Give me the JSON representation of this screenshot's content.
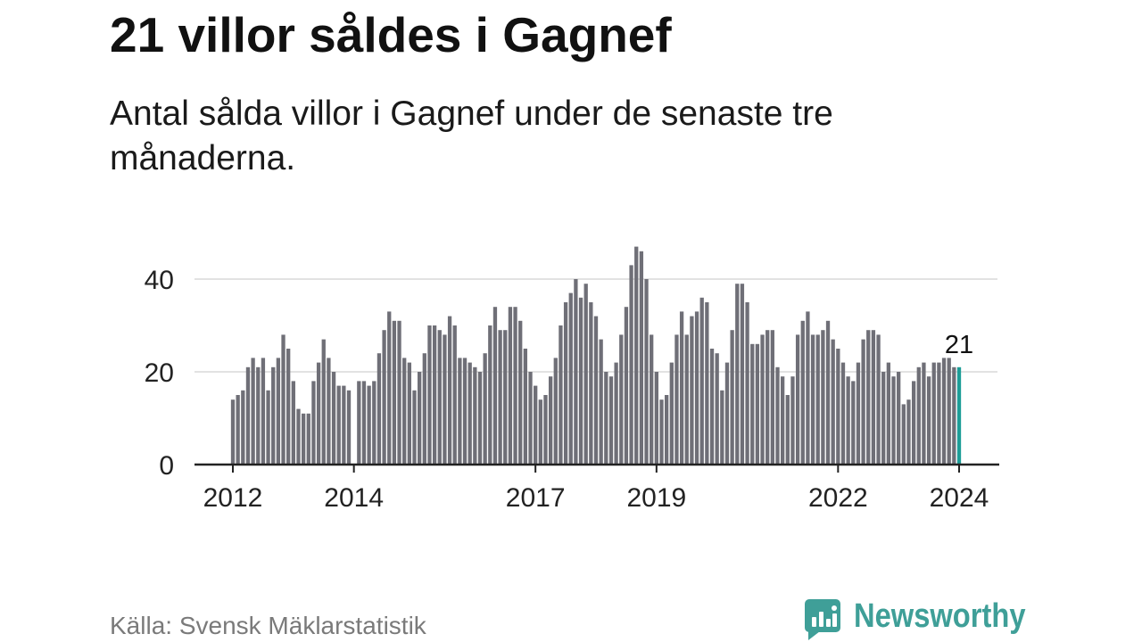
{
  "chart_data": {
    "type": "bar",
    "title": "21 villor såldes i Gagnef",
    "subtitle": "Antal sålda villor i Gagnef under de senaste tre månaderna.",
    "x": [
      "2012-01",
      "2012-02",
      "2012-03",
      "2012-04",
      "2012-05",
      "2012-06",
      "2012-07",
      "2012-08",
      "2012-09",
      "2012-10",
      "2012-11",
      "2012-12",
      "2013-01",
      "2013-02",
      "2013-03",
      "2013-04",
      "2013-05",
      "2013-06",
      "2013-07",
      "2013-08",
      "2013-09",
      "2013-10",
      "2013-11",
      "2013-12",
      "2014-01",
      "2014-02",
      "2014-03",
      "2014-04",
      "2014-05",
      "2014-06",
      "2014-07",
      "2014-08",
      "2014-09",
      "2014-10",
      "2014-11",
      "2014-12",
      "2015-01",
      "2015-02",
      "2015-03",
      "2015-04",
      "2015-05",
      "2015-06",
      "2015-07",
      "2015-08",
      "2015-09",
      "2015-10",
      "2015-11",
      "2015-12",
      "2016-01",
      "2016-02",
      "2016-03",
      "2016-04",
      "2016-05",
      "2016-06",
      "2016-07",
      "2016-08",
      "2016-09",
      "2016-10",
      "2016-11",
      "2016-12",
      "2017-01",
      "2017-02",
      "2017-03",
      "2017-04",
      "2017-05",
      "2017-06",
      "2017-07",
      "2017-08",
      "2017-09",
      "2017-10",
      "2017-11",
      "2017-12",
      "2018-01",
      "2018-02",
      "2018-03",
      "2018-04",
      "2018-05",
      "2018-06",
      "2018-07",
      "2018-08",
      "2018-09",
      "2018-10",
      "2018-11",
      "2018-12",
      "2019-01",
      "2019-02",
      "2019-03",
      "2019-04",
      "2019-05",
      "2019-06",
      "2019-07",
      "2019-08",
      "2019-09",
      "2019-10",
      "2019-11",
      "2019-12",
      "2020-01",
      "2020-02",
      "2020-03",
      "2020-04",
      "2020-05",
      "2020-06",
      "2020-07",
      "2020-08",
      "2020-09",
      "2020-10",
      "2020-11",
      "2020-12",
      "2021-01",
      "2021-02",
      "2021-03",
      "2021-04",
      "2021-05",
      "2021-06",
      "2021-07",
      "2021-08",
      "2021-09",
      "2021-10",
      "2021-11",
      "2021-12",
      "2022-01",
      "2022-02",
      "2022-03",
      "2022-04",
      "2022-05",
      "2022-06",
      "2022-07",
      "2022-08",
      "2022-09",
      "2022-10",
      "2022-11",
      "2022-12",
      "2023-01",
      "2023-02",
      "2023-03",
      "2023-04",
      "2023-05",
      "2023-06",
      "2023-07",
      "2023-08",
      "2023-09",
      "2023-10",
      "2023-11",
      "2023-12",
      "2024-01"
    ],
    "values": [
      14,
      15,
      16,
      21,
      23,
      21,
      23,
      16,
      21,
      23,
      28,
      25,
      18,
      12,
      11,
      11,
      18,
      22,
      27,
      23,
      20,
      17,
      17,
      16,
      null,
      18,
      18,
      17,
      18,
      24,
      29,
      33,
      31,
      31,
      23,
      22,
      16,
      20,
      24,
      30,
      30,
      29,
      28,
      32,
      30,
      23,
      23,
      22,
      21,
      20,
      24,
      30,
      34,
      29,
      29,
      34,
      34,
      31,
      25,
      20,
      17,
      14,
      15,
      19,
      23,
      30,
      35,
      37,
      40,
      36,
      39,
      35,
      32,
      27,
      20,
      19,
      22,
      28,
      34,
      43,
      47,
      46,
      40,
      28,
      20,
      14,
      15,
      22,
      28,
      33,
      28,
      32,
      33,
      36,
      35,
      25,
      24,
      16,
      22,
      29,
      39,
      39,
      35,
      26,
      26,
      28,
      29,
      29,
      21,
      19,
      15,
      19,
      28,
      31,
      33,
      28,
      28,
      29,
      31,
      27,
      25,
      22,
      19,
      18,
      22,
      27,
      29,
      29,
      28,
      20,
      22,
      19,
      20,
      13,
      14,
      18,
      21,
      22,
      19,
      22,
      22,
      23,
      23,
      21,
      21
    ],
    "ylim": [
      0,
      50
    ],
    "y_ticks": [
      0,
      20,
      40
    ],
    "x_ticks": [
      {
        "x": "2012-01",
        "label": "2012"
      },
      {
        "x": "2014-01",
        "label": "2014"
      },
      {
        "x": "2017-01",
        "label": "2017"
      },
      {
        "x": "2019-01",
        "label": "2019"
      },
      {
        "x": "2022-01",
        "label": "2022"
      },
      {
        "x": "2024-01",
        "label": "2024"
      }
    ],
    "grid": "horizontal",
    "highlight": {
      "x": "2024-01"
    },
    "annotations": [
      {
        "x": "2024-01",
        "label": "21"
      }
    ]
  },
  "footer": {
    "source": "Källa: Svensk Mäklarstatistik"
  },
  "logo": {
    "text": "Newsworthy",
    "icon": "chat-bubble-bar-chart-icon"
  },
  "colors": {
    "bar": "#6f6f77",
    "highlight": "#1d9d97",
    "brand": "#3f9f98",
    "grid": "#d9d9d9",
    "axis": "#222222"
  }
}
